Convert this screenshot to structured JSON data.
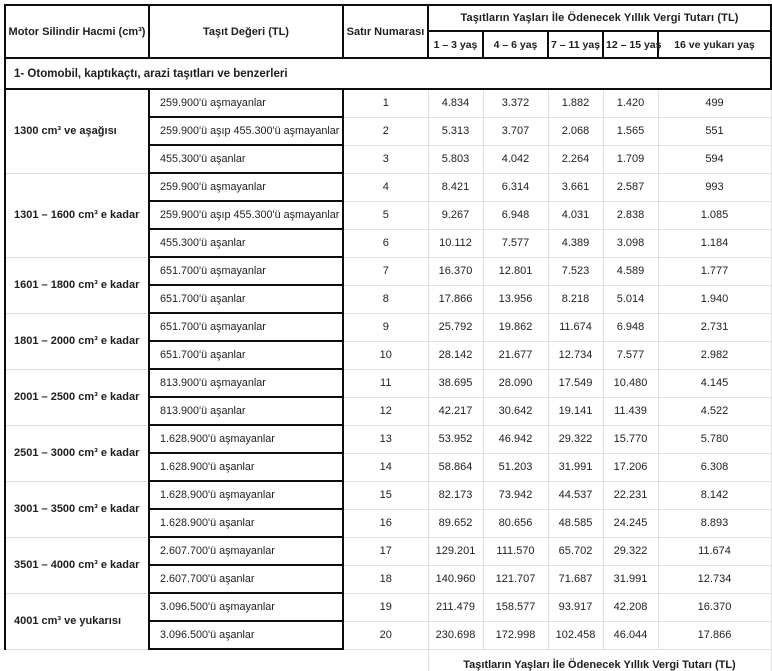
{
  "colors": {
    "border_black": "#0d0d0d",
    "border_light": "#e0e0e0",
    "text": "#1e1e1e",
    "background": "#ffffff"
  },
  "table": {
    "header": {
      "engine_col": "Motor Silindir Hacmi (cm³)",
      "value_col": "Taşıt Değeri (TL)",
      "rownum_col": "Satır Numarası",
      "tax_group": "Taşıtların Yaşları İle Ödenecek Yıllık Vergi Tutarı (TL)",
      "age_cols": [
        "1 – 3 yaş",
        "4 – 6 yaş",
        "7 – 11 yaş",
        "12 – 15 yaş",
        "16 ve yukarı yaş"
      ]
    },
    "section_title": "1- Otomobil, kaptıkaçtı, arazi taşıtları ve benzerleri",
    "groups": [
      {
        "engine": "1300 cm³ ve aşağısı",
        "rows": [
          {
            "value": "259.900'ü aşmayanlar",
            "no": "1",
            "taxes": [
              "4.834",
              "3.372",
              "1.882",
              "1.420",
              "499"
            ]
          },
          {
            "value": "259.900'ü aşıp 455.300'ü aşmayanlar",
            "no": "2",
            "taxes": [
              "5.313",
              "3.707",
              "2.068",
              "1.565",
              "551"
            ]
          },
          {
            "value": "455.300'ü aşanlar",
            "no": "3",
            "taxes": [
              "5.803",
              "4.042",
              "2.264",
              "1.709",
              "594"
            ]
          }
        ]
      },
      {
        "engine": "1301 – 1600 cm³ e kadar",
        "rows": [
          {
            "value": "259.900'ü aşmayanlar",
            "no": "4",
            "taxes": [
              "8.421",
              "6.314",
              "3.661",
              "2.587",
              "993"
            ]
          },
          {
            "value": "259.900'ü aşıp 455.300'ü aşmayanlar",
            "no": "5",
            "taxes": [
              "9.267",
              "6.948",
              "4.031",
              "2.838",
              "1.085"
            ]
          },
          {
            "value": "455.300'ü aşanlar",
            "no": "6",
            "taxes": [
              "10.112",
              "7.577",
              "4.389",
              "3.098",
              "1.184"
            ]
          }
        ]
      },
      {
        "engine": "1601 – 1800 cm³ e kadar",
        "rows": [
          {
            "value": "651.700'ü aşmayanlar",
            "no": "7",
            "taxes": [
              "16.370",
              "12.801",
              "7.523",
              "4.589",
              "1.777"
            ]
          },
          {
            "value": "651.700'ü aşanlar",
            "no": "8",
            "taxes": [
              "17.866",
              "13.956",
              "8.218",
              "5.014",
              "1.940"
            ]
          }
        ]
      },
      {
        "engine": "1801 – 2000 cm³ e kadar",
        "rows": [
          {
            "value": "651.700'ü aşmayanlar",
            "no": "9",
            "taxes": [
              "25.792",
              "19.862",
              "11.674",
              "6.948",
              "2.731"
            ]
          },
          {
            "value": "651.700'ü aşanlar",
            "no": "10",
            "taxes": [
              "28.142",
              "21.677",
              "12.734",
              "7.577",
              "2.982"
            ]
          }
        ]
      },
      {
        "engine": "2001 – 2500 cm³ e kadar",
        "rows": [
          {
            "value": "813.900'ü aşmayanlar",
            "no": "11",
            "taxes": [
              "38.695",
              "28.090",
              "17.549",
              "10.480",
              "4.145"
            ]
          },
          {
            "value": "813.900'ü aşanlar",
            "no": "12",
            "taxes": [
              "42.217",
              "30.642",
              "19.141",
              "11.439",
              "4.522"
            ]
          }
        ]
      },
      {
        "engine": "2501 – 3000 cm³ e kadar",
        "rows": [
          {
            "value": "1.628.900'ü aşmayanlar",
            "no": "13",
            "taxes": [
              "53.952",
              "46.942",
              "29.322",
              "15.770",
              "5.780"
            ]
          },
          {
            "value": "1.628.900'ü aşanlar",
            "no": "14",
            "taxes": [
              "58.864",
              "51.203",
              "31.991",
              "17.206",
              "6.308"
            ]
          }
        ]
      },
      {
        "engine": "3001 – 3500 cm³ e kadar",
        "rows": [
          {
            "value": "1.628.900'ü aşmayanlar",
            "no": "15",
            "taxes": [
              "82.173",
              "73.942",
              "44.537",
              "22.231",
              "8.142"
            ]
          },
          {
            "value": "1.628.900'ü aşanlar",
            "no": "16",
            "taxes": [
              "89.652",
              "80.656",
              "48.585",
              "24.245",
              "8.893"
            ]
          }
        ]
      },
      {
        "engine": "3501 – 4000 cm³ e kadar",
        "rows": [
          {
            "value": "2.607.700'ü aşmayanlar",
            "no": "17",
            "taxes": [
              "129.201",
              "111.570",
              "65.702",
              "29.322",
              "11.674"
            ]
          },
          {
            "value": "2.607.700'ü aşanlar",
            "no": "18",
            "taxes": [
              "140.960",
              "121.707",
              "71.687",
              "31.991",
              "12.734"
            ]
          }
        ]
      },
      {
        "engine": "4001 cm³ ve yukarısı",
        "rows": [
          {
            "value": "3.096.500'ü aşmayanlar",
            "no": "19",
            "taxes": [
              "211.479",
              "158.577",
              "93.917",
              "42.208",
              "16.370"
            ]
          },
          {
            "value": "3.096.500'ü aşanlar",
            "no": "20",
            "taxes": [
              "230.698",
              "172.998",
              "102.458",
              "46.044",
              "17.866"
            ]
          }
        ]
      }
    ],
    "footer_repeat_header": "Taşıtların Yaşları İle Ödenecek Yıllık Vergi Tutarı (TL)"
  }
}
